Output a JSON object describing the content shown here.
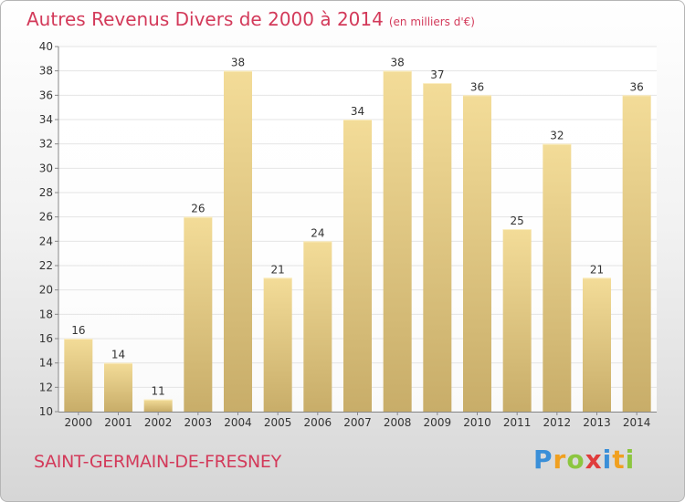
{
  "header": {
    "title": "Autres Revenus Divers de 2000 à 2014",
    "unit": "(en milliers d'€)"
  },
  "footer": {
    "commune": "SAINT-GERMAIN-DE-FRESNEY",
    "logo_letters": [
      {
        "ch": "P",
        "color": "#3a8fd8"
      },
      {
        "ch": "r",
        "color": "#f0a020"
      },
      {
        "ch": "o",
        "color": "#8cc63f"
      },
      {
        "ch": "x",
        "color": "#e03c3c"
      },
      {
        "ch": "i",
        "color": "#3a8fd8"
      },
      {
        "ch": "t",
        "color": "#f0a020"
      },
      {
        "ch": "i",
        "color": "#8cc63f"
      }
    ]
  },
  "colors": {
    "accent": "#d33a5a",
    "bar_top": "#f3dc98",
    "bar_bottom": "#c8ad69",
    "axis": "#888888",
    "grid": "#e4e4e4"
  },
  "chart_data": {
    "type": "bar",
    "categories": [
      "2000",
      "2001",
      "2002",
      "2003",
      "2004",
      "2005",
      "2006",
      "2007",
      "2008",
      "2009",
      "2010",
      "2011",
      "2012",
      "2013",
      "2014"
    ],
    "values": [
      16,
      14,
      11,
      26,
      38,
      21,
      24,
      34,
      38,
      37,
      36,
      25,
      32,
      21,
      36
    ],
    "ylim": [
      10,
      40
    ],
    "yticks": [
      10,
      12,
      14,
      16,
      18,
      20,
      22,
      24,
      26,
      28,
      30,
      32,
      34,
      36,
      38,
      40
    ],
    "grid": true,
    "data_labels": true
  }
}
